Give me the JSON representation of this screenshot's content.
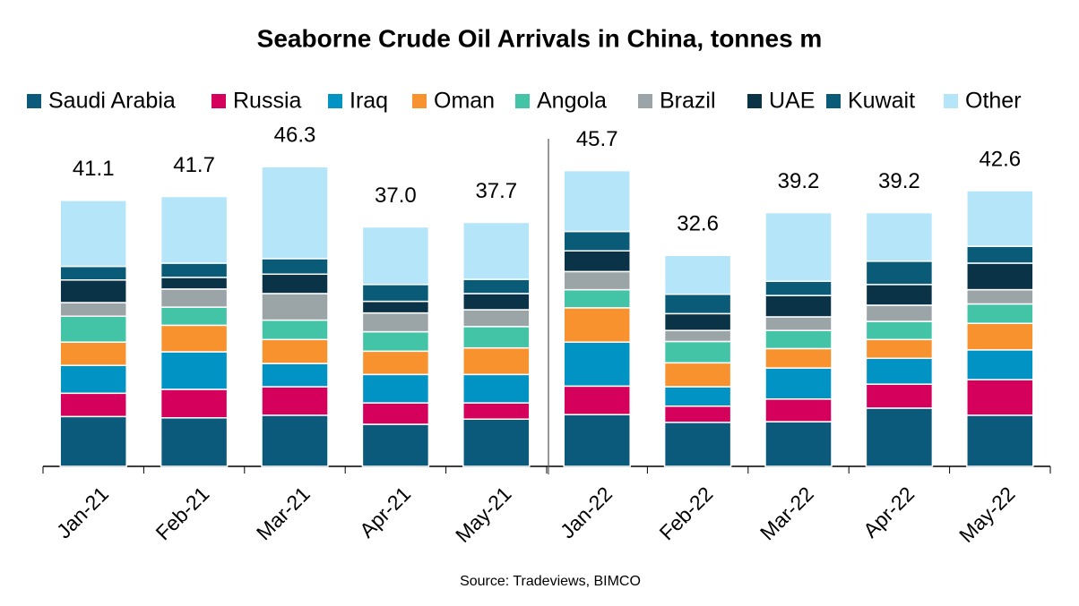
{
  "chart_data": {
    "type": "stacked_bar",
    "title": "Seaborne Crude Oil Arrivals in China, tonnes m",
    "source": "Source: Tradeviews, BIMCO",
    "categories": [
      "Jan-21",
      "Feb-21",
      "Mar-21",
      "Apr-21",
      "May-21",
      "Jan-22",
      "Feb-22",
      "Mar-22",
      "Apr-22",
      "May-22"
    ],
    "totals": [
      41.1,
      41.7,
      46.3,
      37.0,
      37.7,
      45.7,
      32.6,
      39.2,
      39.2,
      42.6
    ],
    "total_labels": [
      "41.1",
      "41.7",
      "46.3",
      "37.0",
      "37.7",
      "45.7",
      "32.6",
      "39.2",
      "39.2",
      "42.6"
    ],
    "series": [
      {
        "name": "Saudi Arabia",
        "color": "#0b5a7c",
        "values": [
          7.7,
          7.5,
          7.9,
          6.5,
          7.3,
          8.0,
          6.8,
          6.9,
          9.0,
          7.9
        ]
      },
      {
        "name": "Russia",
        "color": "#d4005c",
        "values": [
          3.6,
          4.4,
          4.4,
          3.3,
          2.5,
          4.4,
          2.5,
          3.5,
          3.7,
          5.5
        ]
      },
      {
        "name": "Iraq",
        "color": "#0093c4",
        "values": [
          4.3,
          5.8,
          3.6,
          4.4,
          4.4,
          6.8,
          3.0,
          4.8,
          4.0,
          4.6
        ]
      },
      {
        "name": "Oman",
        "color": "#f7922f",
        "values": [
          3.6,
          4.1,
          3.7,
          3.6,
          4.1,
          5.3,
          3.7,
          3.0,
          2.9,
          4.1
        ]
      },
      {
        "name": "Angola",
        "color": "#43c4a6",
        "values": [
          4.0,
          2.8,
          3.0,
          3.0,
          3.3,
          2.8,
          3.3,
          2.8,
          2.8,
          3.0
        ]
      },
      {
        "name": "Brazil",
        "color": "#9ba5a8",
        "values": [
          2.1,
          2.8,
          4.1,
          2.9,
          2.6,
          2.8,
          1.7,
          2.1,
          2.5,
          2.2
        ]
      },
      {
        "name": "UAE",
        "color": "#0b3348",
        "values": [
          3.5,
          1.8,
          3.0,
          1.8,
          2.5,
          3.2,
          2.6,
          3.3,
          3.2,
          4.1
        ]
      },
      {
        "name": "Kuwait",
        "color": "#0a5b78",
        "values": [
          2.1,
          2.2,
          2.4,
          2.6,
          2.2,
          3.0,
          3.0,
          2.2,
          3.6,
          2.6
        ]
      },
      {
        "name": "Other",
        "color": "#b5e5f8",
        "values": [
          10.2,
          10.3,
          14.2,
          8.9,
          8.8,
          9.4,
          6.0,
          10.6,
          7.5,
          8.6
        ]
      }
    ]
  }
}
